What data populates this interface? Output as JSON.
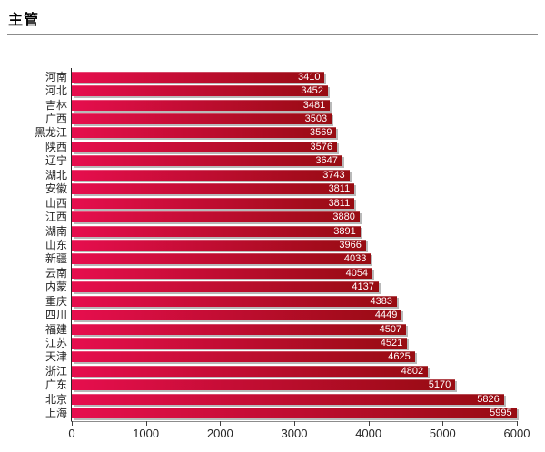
{
  "page": {
    "title": "主管"
  },
  "colors": {
    "bar_gradient_start": "#e60e4e",
    "bar_gradient_end": "#970c12",
    "bar_shadow": "#b9b9b9",
    "value_label": "#ffffff",
    "axis_line": "#262626",
    "title_rule": "#8c8c8c",
    "tick_label": "#262626"
  },
  "chart_data": {
    "type": "bar",
    "orientation": "horizontal",
    "title": "主管",
    "categories": [
      "河南",
      "河北",
      "吉林",
      "广西",
      "黑龙江",
      "陕西",
      "辽宁",
      "湖北",
      "安徽",
      "山西",
      "江西",
      "湖南",
      "山东",
      "新疆",
      "云南",
      "内蒙",
      "重庆",
      "四川",
      "福建",
      "江苏",
      "天津",
      "浙江",
      "广东",
      "北京",
      "上海"
    ],
    "values": [
      3410,
      3452,
      3481,
      3503,
      3569,
      3576,
      3647,
      3743,
      3811,
      3811,
      3880,
      3891,
      3966,
      4033,
      4054,
      4137,
      4383,
      4449,
      4507,
      4521,
      4625,
      4802,
      5170,
      5826,
      5995
    ],
    "value_labels": [
      "3410",
      "3452",
      "3481",
      "3503",
      "3569",
      "3576",
      "3647",
      "3743",
      "3811",
      "3811",
      "3880",
      "3891",
      "3966",
      "4033",
      "4054",
      "4137",
      "4383",
      "4449",
      "4507",
      "4521",
      "4625",
      "4802",
      "5170",
      "5826",
      "5995"
    ],
    "xlabel": "",
    "ylabel": "",
    "xlim": [
      0,
      6000
    ],
    "xticks": [
      0,
      1000,
      2000,
      3000,
      4000,
      5000,
      6000
    ],
    "xtick_labels": [
      "0",
      "1000",
      "2000",
      "3000",
      "4000",
      "5000",
      "6000"
    ],
    "grid": false,
    "legend_position": "none",
    "value_labels_inside_bar_right": true
  }
}
